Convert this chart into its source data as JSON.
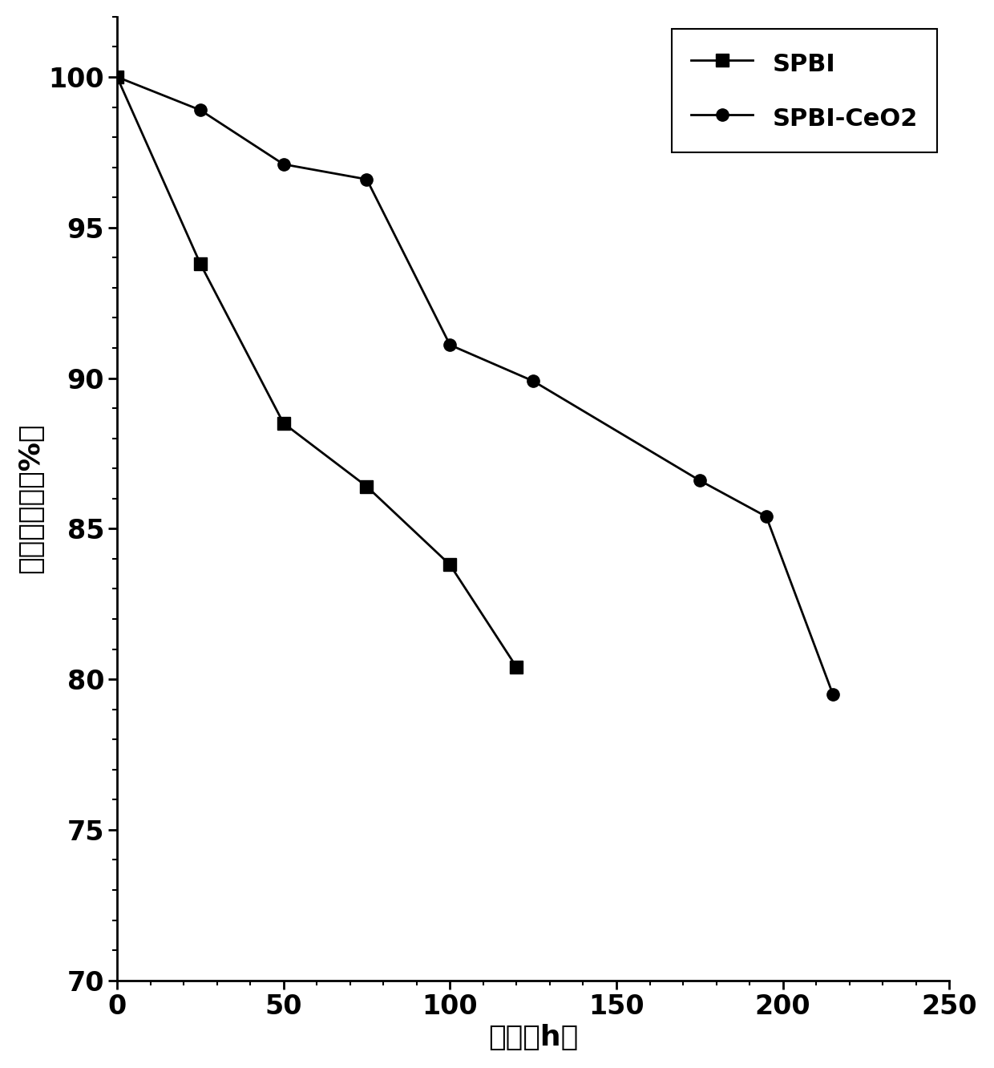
{
  "spbi_x": [
    0,
    25,
    50,
    75,
    100,
    120
  ],
  "spbi_y": [
    100,
    93.8,
    88.5,
    86.4,
    83.8,
    80.4
  ],
  "spbi_ceo2_x": [
    0,
    25,
    50,
    75,
    100,
    125,
    175,
    195,
    215
  ],
  "spbi_ceo2_y": [
    100,
    98.9,
    97.1,
    96.6,
    91.1,
    89.9,
    86.6,
    85.4,
    79.5
  ],
  "spbi_label": "SPBI",
  "spbi_ceo2_label": "SPBI-CeO2",
  "xlabel": "时间（h）",
  "ylabel": "质量保留率（%）",
  "xlim": [
    0,
    250
  ],
  "ylim": [
    70,
    102
  ],
  "yticks": [
    70,
    75,
    80,
    85,
    90,
    95,
    100
  ],
  "xticks": [
    0,
    50,
    100,
    150,
    200,
    250
  ],
  "line_color": "#000000",
  "marker_square": "s",
  "marker_circle": "o",
  "marker_size": 11,
  "linewidth": 2.0,
  "font_size_label": 26,
  "font_size_tick": 24,
  "font_size_legend": 22,
  "background_color": "#ffffff"
}
